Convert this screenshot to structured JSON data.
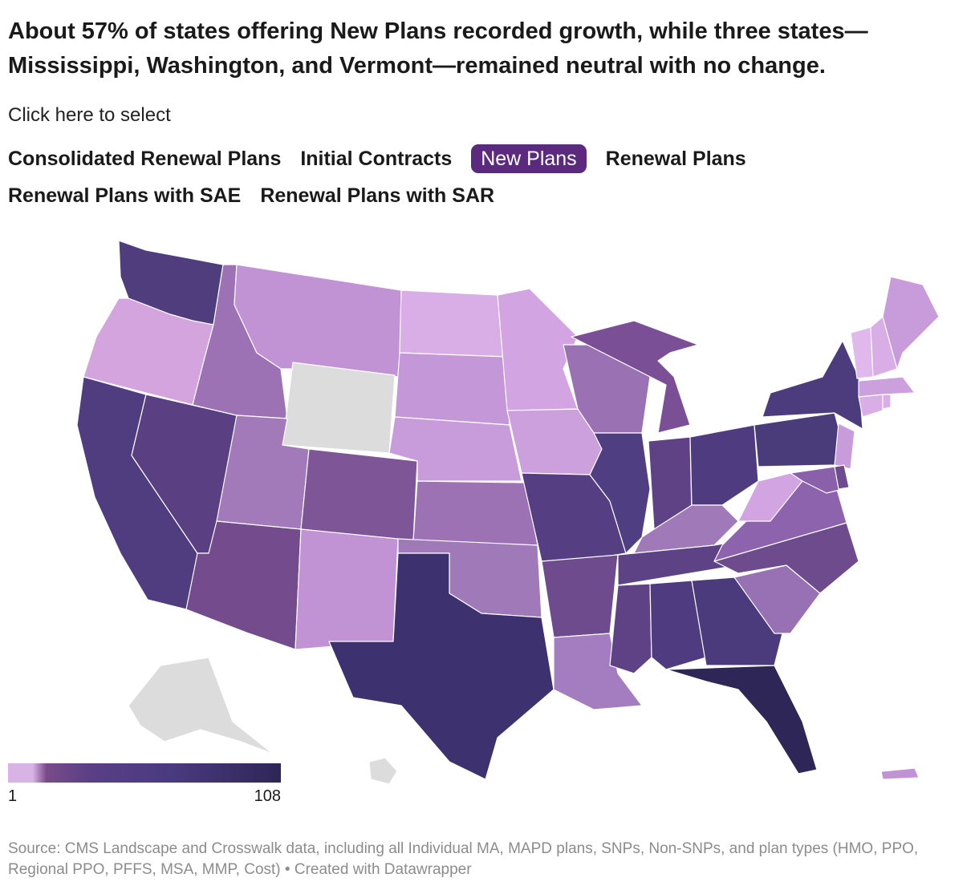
{
  "title": "About 57% of states offering New Plans recorded growth, while three states—Mississippi, Washington, and Vermont—remained neutral with no change.",
  "selector_hint": "Click here to select",
  "tabs": [
    {
      "label": "Consolidated Renewal Plans",
      "active": false
    },
    {
      "label": "Initial Contracts",
      "active": false
    },
    {
      "label": "New Plans",
      "active": true
    },
    {
      "label": "Renewal Plans",
      "active": false
    },
    {
      "label": "Renewal Plans with SAE",
      "active": false
    },
    {
      "label": "Renewal Plans with SAR",
      "active": false
    }
  ],
  "legend": {
    "min_label": "1",
    "max_label": "108",
    "color_low": "#d9b3e6",
    "color_high": "#2e2656"
  },
  "colors": {
    "active_tab": "#5b2a7e",
    "no_data": "#dcdcdc"
  },
  "source": "Source: CMS Landscape and Crosswalk data, including all Individual MA, MAPD plans, SNPs, Non-SNPs, and plan types (HMO, PPO, Regional PPO, PFFS, MSA, MMP, Cost) • Created with Datawrapper"
}
